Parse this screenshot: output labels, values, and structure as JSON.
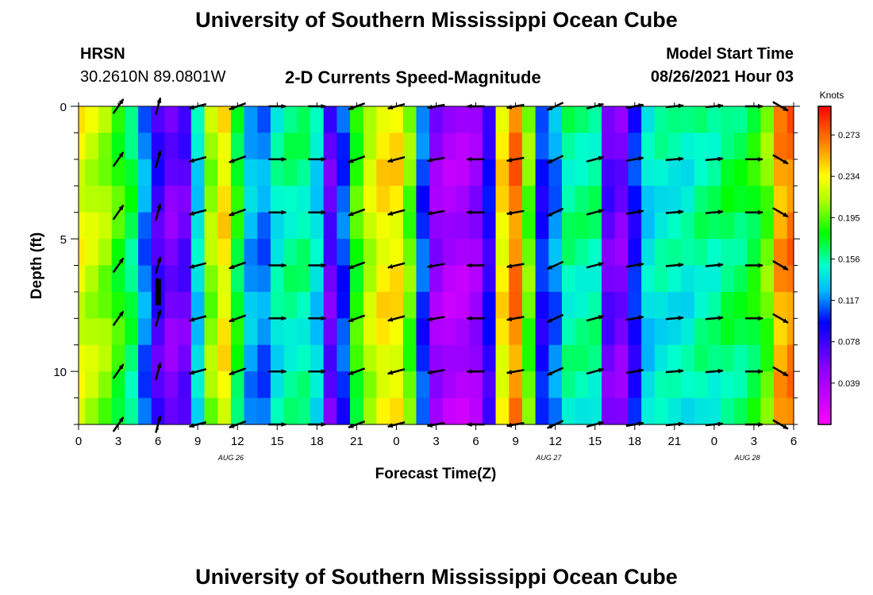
{
  "header": {
    "title": "University of Southern Mississippi Ocean Cube",
    "station": "HRSN",
    "coords": "30.2610N  89.0801W",
    "subtitle": "2-D Currents Speed-Magnitude",
    "model_label": "Model Start Time",
    "model_time": "08/26/2021 Hour 03",
    "footer_title": "University of Southern Mississippi Ocean Cube"
  },
  "chart_data": {
    "type": "heatmap",
    "title": "2-D Currents Speed-Magnitude",
    "xlabel": "Forecast Time(Z)",
    "ylabel": "Depth (ft)",
    "x_tick_labels": [
      "0",
      "3",
      "6",
      "9",
      "12",
      "15",
      "18",
      "21",
      "0",
      "3",
      "6",
      "9",
      "12",
      "15",
      "18",
      "21",
      "0",
      "3",
      "6"
    ],
    "date_labels": [
      {
        "label": "AUG 26",
        "hours": 11.5
      },
      {
        "label": "AUG 27",
        "hours": 35.5
      },
      {
        "label": "AUG 28",
        "hours": 50.5
      }
    ],
    "x_range_hours": [
      0,
      54
    ],
    "y_tick_labels": [
      "0",
      "5",
      "10"
    ],
    "y_range_ft": [
      0,
      12
    ],
    "colorbar": {
      "units": "Knots",
      "tick_labels": [
        "0.273",
        "0.234",
        "0.195",
        "0.156",
        "0.117",
        "0.078",
        "0.039"
      ],
      "tick_values": [
        0.273,
        0.234,
        0.195,
        0.156,
        0.117,
        0.078,
        0.039
      ],
      "range": [
        0.0,
        0.3
      ]
    },
    "speed_by_hour_profile": [
      0.23,
      0.22,
      0.21,
      0.19,
      0.17,
      0.12,
      0.08,
      0.06,
      0.07,
      0.14,
      0.21,
      0.24,
      0.18,
      0.13,
      0.12,
      0.15,
      0.16,
      0.16,
      0.14,
      0.07,
      0.11,
      0.19,
      0.22,
      0.24,
      0.24,
      0.2,
      0.11,
      0.05,
      0.04,
      0.04,
      0.05,
      0.09,
      0.24,
      0.27,
      0.2,
      0.1,
      0.12,
      0.16,
      0.16,
      0.16,
      0.07,
      0.06,
      0.1,
      0.14,
      0.15,
      0.15,
      0.15,
      0.16,
      0.16,
      0.17,
      0.17,
      0.18,
      0.2,
      0.26,
      0.27
    ],
    "arrow_hours": [
      3.0,
      6.0,
      9.0,
      12.0,
      15.0,
      18.0,
      21.0,
      24.0,
      27.0,
      30.0,
      33.0,
      36.0,
      39.0,
      42.0,
      45.0,
      48.0,
      51.0,
      53.0
    ],
    "arrow_depths_ft": [
      0,
      2,
      4,
      6,
      8,
      10,
      12
    ],
    "arrow_direction_deg_by_hour": [
      55,
      75,
      195,
      200,
      0,
      0,
      200,
      195,
      190,
      180,
      190,
      205,
      15,
      10,
      5,
      5,
      0,
      330
    ]
  }
}
